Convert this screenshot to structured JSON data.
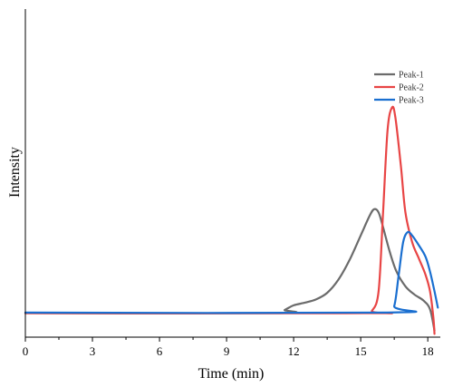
{
  "chart_data": {
    "type": "line",
    "title": "",
    "xlabel": "Time (min)",
    "ylabel": "Intensity",
    "xlim": [
      0,
      18.5
    ],
    "ylim": [
      0,
      1
    ],
    "x_ticks": [
      0,
      3,
      6,
      9,
      12,
      15,
      18
    ],
    "x_tick_labels": [
      "0",
      "3",
      "6",
      "9",
      "12",
      "15",
      "18"
    ],
    "y_ticks_shown": false,
    "grid": false,
    "legend_position": "top-right",
    "series": [
      {
        "name": "Peak-1",
        "color": "#6b6b6b",
        "points": [
          [
            0,
            0.073
          ],
          [
            11.2,
            0.073
          ],
          [
            11.6,
            0.083
          ],
          [
            12.0,
            0.097
          ],
          [
            12.5,
            0.105
          ],
          [
            13.0,
            0.115
          ],
          [
            13.5,
            0.135
          ],
          [
            14.0,
            0.175
          ],
          [
            14.5,
            0.235
          ],
          [
            15.0,
            0.31
          ],
          [
            15.4,
            0.37
          ],
          [
            15.6,
            0.39
          ],
          [
            15.8,
            0.38
          ],
          [
            16.0,
            0.335
          ],
          [
            16.3,
            0.26
          ],
          [
            16.6,
            0.2
          ],
          [
            17.0,
            0.155
          ],
          [
            17.4,
            0.13
          ],
          [
            17.8,
            0.112
          ],
          [
            18.1,
            0.085
          ],
          [
            18.3,
            0.02
          ]
        ]
      },
      {
        "name": "Peak-2",
        "color": "#e84545",
        "points": [
          [
            0,
            0.073
          ],
          [
            15.2,
            0.073
          ],
          [
            15.5,
            0.08
          ],
          [
            15.8,
            0.14
          ],
          [
            16.0,
            0.38
          ],
          [
            16.2,
            0.63
          ],
          [
            16.4,
            0.7
          ],
          [
            16.55,
            0.67
          ],
          [
            16.8,
            0.52
          ],
          [
            17.0,
            0.38
          ],
          [
            17.3,
            0.29
          ],
          [
            17.6,
            0.24
          ],
          [
            17.9,
            0.19
          ],
          [
            18.1,
            0.14
          ],
          [
            18.25,
            0.06
          ],
          [
            18.3,
            0.01
          ]
        ]
      },
      {
        "name": "Peak-3",
        "color": "#1a6fd0",
        "points": [
          [
            0,
            0.075
          ],
          [
            16.2,
            0.075
          ],
          [
            16.5,
            0.095
          ],
          [
            16.7,
            0.19
          ],
          [
            16.9,
            0.29
          ],
          [
            17.1,
            0.32
          ],
          [
            17.3,
            0.31
          ],
          [
            17.6,
            0.28
          ],
          [
            17.9,
            0.245
          ],
          [
            18.1,
            0.2
          ],
          [
            18.3,
            0.14
          ],
          [
            18.45,
            0.09
          ]
        ]
      }
    ]
  }
}
